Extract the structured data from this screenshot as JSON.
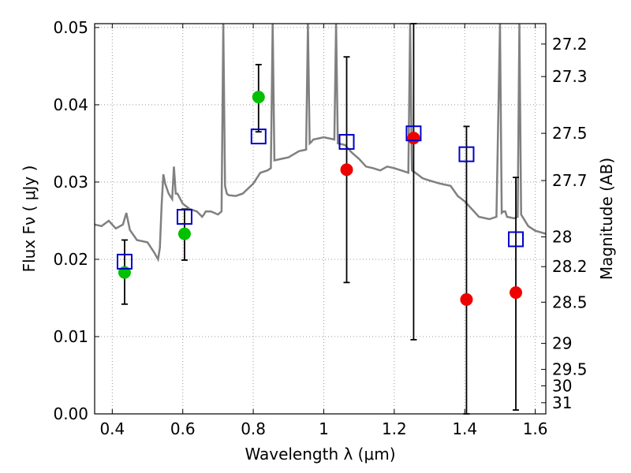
{
  "chart_data": {
    "type": "scatter",
    "title": "",
    "xlabel": "Wavelength  λ (μm)",
    "ylabel": "Flux  Fν  ( μJy )",
    "y2label": "Magnitude (AB)",
    "xlim": [
      0.35,
      1.63
    ],
    "ylim": [
      0.0,
      0.0505
    ],
    "x_ticks": [
      0.4,
      0.6,
      0.8,
      1.0,
      1.2,
      1.4,
      1.6
    ],
    "x_tick_labels": [
      "0.4",
      "0.6",
      "0.8",
      "1",
      "1.2",
      "1.4",
      "1.6"
    ],
    "y_ticks": [
      0.0,
      0.01,
      0.02,
      0.03,
      0.04,
      0.05
    ],
    "y_tick_labels": [
      "0.00",
      "0.01",
      "0.02",
      "0.03",
      "0.04",
      "0.05"
    ],
    "magnitude_ticks": [
      "27.2",
      "27.3",
      "27.5",
      "27.7",
      "28",
      "28.2",
      "28.5",
      "29",
      "29.5",
      "30",
      "31"
    ],
    "grid": true,
    "colors": {
      "model": "#808080",
      "green_points": "#00c000",
      "red_points": "#ee0000",
      "model_boxes": "#0000cc",
      "errorbars": "#000000"
    },
    "series": [
      {
        "marker": "circle-green",
        "points": [
          {
            "x": 0.435,
            "y": 0.0183,
            "err_low": 0.0142,
            "err_high": 0.0225
          },
          {
            "x": 0.605,
            "y": 0.0233,
            "err_low": 0.0199,
            "err_high": 0.0265
          },
          {
            "x": 0.815,
            "y": 0.041,
            "err_low": 0.0365,
            "err_high": 0.0452
          }
        ]
      },
      {
        "marker": "circle-red",
        "points": [
          {
            "x": 1.065,
            "y": 0.0316,
            "err_low": 0.017,
            "err_high": 0.0462
          },
          {
            "x": 1.255,
            "y": 0.0357,
            "err_low": 0.0096,
            "err_high": 0.0505
          },
          {
            "x": 1.405,
            "y": 0.0148,
            "err_low": 0.0,
            "err_high": 0.0372
          },
          {
            "x": 1.545,
            "y": 0.0157,
            "err_low": 0.0005,
            "err_high": 0.0306
          }
        ]
      },
      {
        "marker": "square-blue",
        "points": [
          {
            "x": 0.435,
            "y": 0.0197
          },
          {
            "x": 0.605,
            "y": 0.0255
          },
          {
            "x": 0.815,
            "y": 0.0359
          },
          {
            "x": 1.065,
            "y": 0.0352
          },
          {
            "x": 1.255,
            "y": 0.0363
          },
          {
            "x": 1.405,
            "y": 0.0336
          },
          {
            "x": 1.545,
            "y": 0.0226
          }
        ]
      },
      {
        "marker": "line-gray",
        "x": [
          0.35,
          0.37,
          0.39,
          0.41,
          0.43,
          0.44,
          0.45,
          0.47,
          0.5,
          0.52,
          0.53,
          0.535,
          0.54,
          0.545,
          0.55,
          0.56,
          0.57,
          0.575,
          0.58,
          0.585,
          0.6,
          0.62,
          0.64,
          0.655,
          0.66,
          0.665,
          0.68,
          0.7,
          0.71,
          0.715,
          0.72,
          0.725,
          0.73,
          0.75,
          0.77,
          0.8,
          0.82,
          0.84,
          0.85,
          0.855,
          0.86,
          0.88,
          0.9,
          0.93,
          0.95,
          0.955,
          0.96,
          0.965,
          0.97,
          1.0,
          1.02,
          1.03,
          1.035,
          1.04,
          1.06,
          1.08,
          1.1,
          1.12,
          1.14,
          1.16,
          1.18,
          1.2,
          1.22,
          1.24,
          1.245,
          1.25,
          1.26,
          1.28,
          1.3,
          1.33,
          1.36,
          1.38,
          1.4,
          1.42,
          1.44,
          1.47,
          1.49,
          1.5,
          1.505,
          1.51,
          1.515,
          1.52,
          1.54,
          1.55,
          1.555,
          1.56,
          1.58,
          1.6,
          1.63
        ],
        "y": [
          0.0245,
          0.0243,
          0.025,
          0.024,
          0.0245,
          0.026,
          0.0238,
          0.0225,
          0.0222,
          0.0208,
          0.02,
          0.0215,
          0.027,
          0.031,
          0.0298,
          0.0285,
          0.0278,
          0.032,
          0.0285,
          0.0285,
          0.0272,
          0.0265,
          0.0262,
          0.0255,
          0.0258,
          0.0262,
          0.0262,
          0.0258,
          0.0262,
          0.051,
          0.0295,
          0.0285,
          0.0283,
          0.0282,
          0.0285,
          0.0298,
          0.0312,
          0.0315,
          0.0318,
          0.0505,
          0.0328,
          0.033,
          0.0332,
          0.034,
          0.0342,
          0.051,
          0.035,
          0.0352,
          0.0355,
          0.0358,
          0.0356,
          0.0355,
          0.051,
          0.035,
          0.0348,
          0.0338,
          0.033,
          0.032,
          0.0318,
          0.0315,
          0.032,
          0.0318,
          0.0315,
          0.0312,
          0.0505,
          0.0315,
          0.0312,
          0.0305,
          0.0302,
          0.0298,
          0.0295,
          0.0282,
          0.0275,
          0.0265,
          0.0255,
          0.0252,
          0.0255,
          0.051,
          0.026,
          0.0262,
          0.0262,
          0.0255,
          0.0253,
          0.0255,
          0.051,
          0.0258,
          0.0243,
          0.0237,
          0.0233
        ]
      }
    ]
  }
}
